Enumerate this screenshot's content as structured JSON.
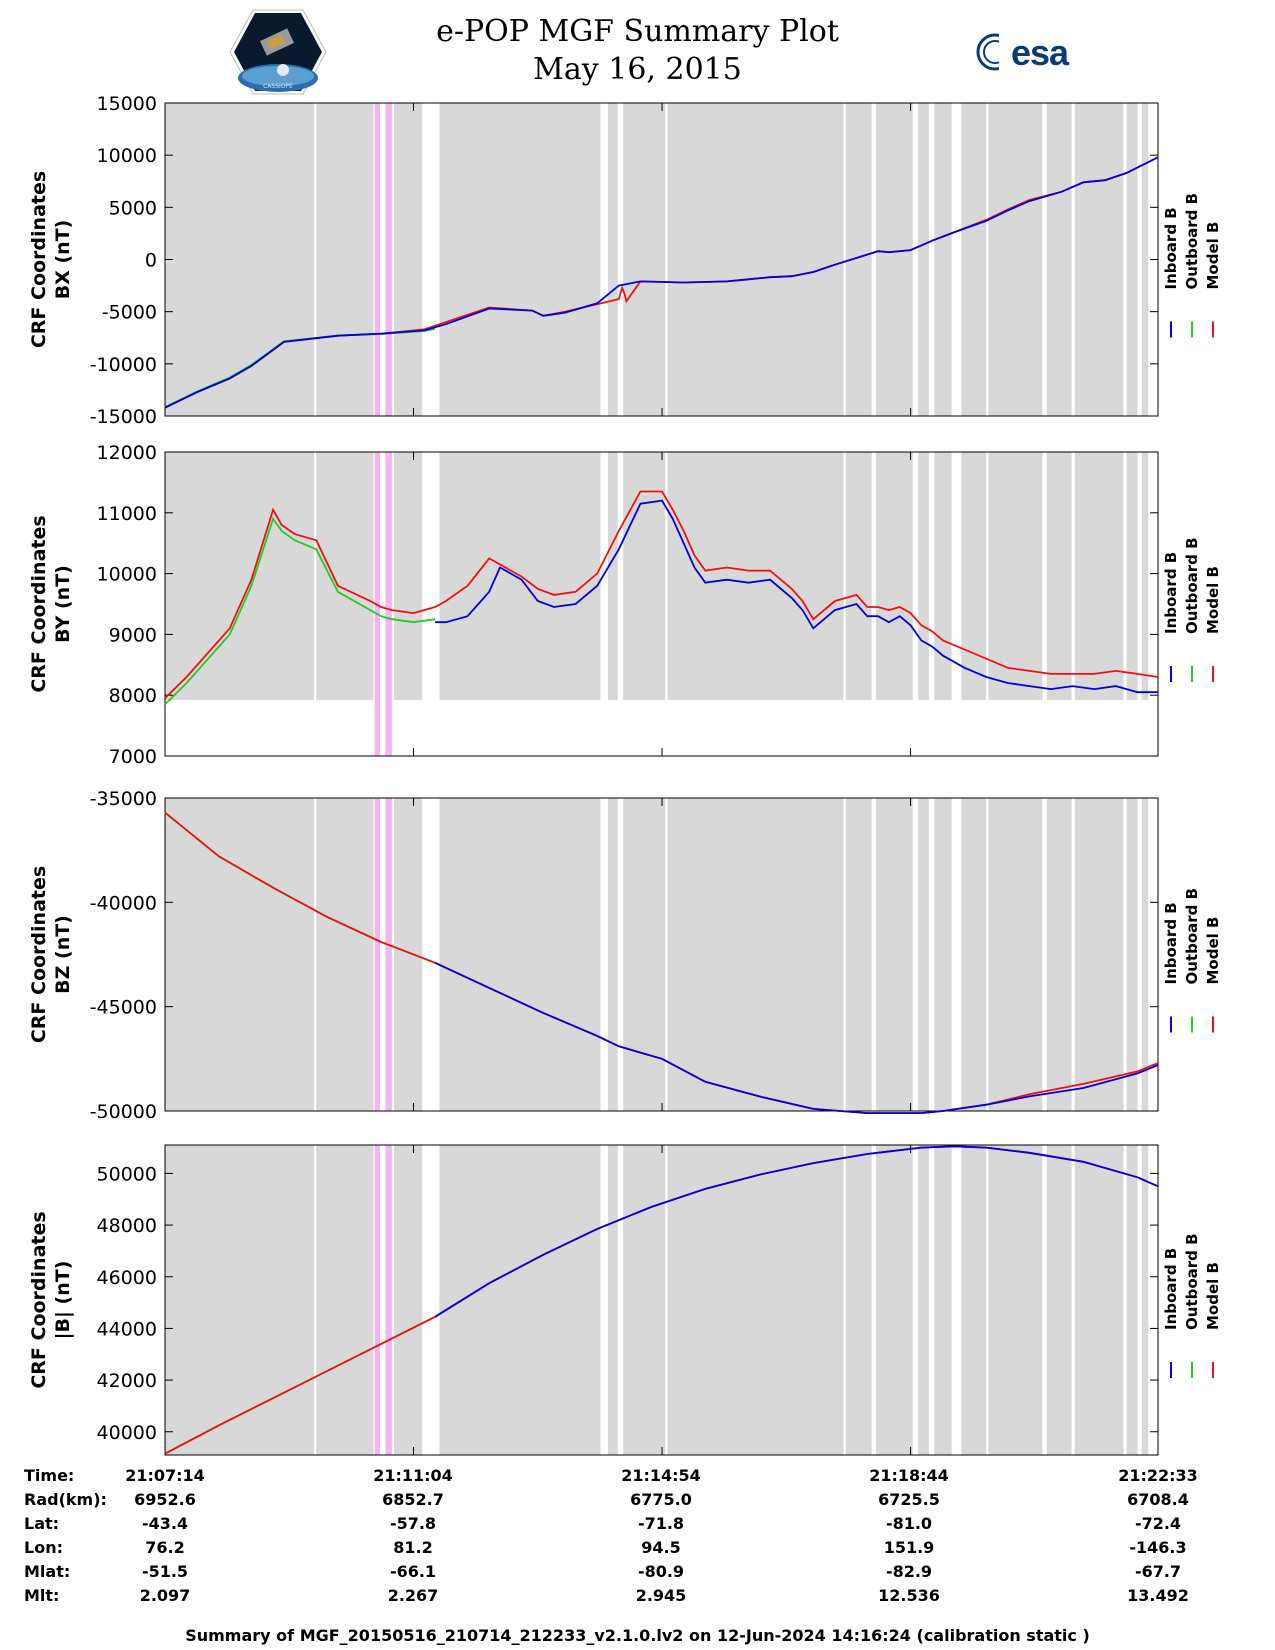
{
  "header": {
    "title_line1": "e-POP MGF Summary Plot",
    "title_line2": "May 16, 2015",
    "logo_left": "cassiope-satellite-logo",
    "logo_right_text": "esa",
    "logo_left_caption": "CASSIOPE"
  },
  "colors": {
    "inboard": "#0000dd",
    "outboard": "#22cc22",
    "model": "#ee1111",
    "background_band": "#d8d8d8",
    "pink_band": "#f3b6f0"
  },
  "legend": [
    "Inboard B",
    "Outboard B",
    "Model B"
  ],
  "time_axis": {
    "start_seconds": 0,
    "end_seconds": 919,
    "tick_seconds": [
      230,
      460,
      690
    ]
  },
  "chart_data": [
    {
      "type": "line",
      "ylabel_line1": "CRF Coordinates",
      "ylabel_line2": "BX (nT)",
      "ylim": [
        -15000,
        15000
      ],
      "yticks": [
        15000,
        10000,
        5000,
        0,
        -5000,
        -10000,
        -15000
      ],
      "ytick_labels": [
        "15000",
        "10000",
        "5000",
        "0",
        "-5000",
        "-10000",
        "-15000"
      ],
      "band_ylim": [
        -15000,
        15000
      ],
      "series": [
        {
          "name": "Inboard B",
          "x": [
            0,
            30,
            60,
            80,
            110,
            160,
            200,
            240,
            260,
            300,
            340,
            350,
            370,
            400,
            420,
            440,
            480,
            520,
            540,
            560,
            580,
            600,
            620,
            660,
            670,
            690,
            710,
            730,
            760,
            780,
            800,
            830,
            850,
            870,
            890,
            919
          ],
          "y": [
            -14200,
            -12700,
            -11400,
            -10200,
            -7900,
            -7300,
            -7100,
            -6800,
            -6200,
            -4700,
            -4900,
            -5400,
            -5100,
            -4200,
            -2500,
            -2100,
            -2200,
            -2100,
            -1900,
            -1700,
            -1600,
            -1200,
            -500,
            800,
            700,
            900,
            1800,
            2600,
            3700,
            4700,
            5600,
            6500,
            7400,
            7600,
            8300,
            9800
          ]
        },
        {
          "name": "Outboard B",
          "x": [
            0,
            30,
            60,
            80,
            110,
            160,
            200,
            240,
            250
          ],
          "y": [
            -14150,
            -12650,
            -11300,
            -10100,
            -7850,
            -7280,
            -7150,
            -6850,
            -6650
          ]
        },
        {
          "name": "Model B",
          "x": [
            0,
            30,
            60,
            80,
            110,
            160,
            200,
            240,
            260,
            300,
            340,
            350,
            370,
            420,
            423,
            425,
            427,
            440,
            480,
            520,
            540,
            560,
            580,
            600,
            620,
            660,
            670,
            690,
            710,
            730,
            760,
            780,
            800,
            830,
            850,
            870,
            890,
            919
          ],
          "y": [
            -14200,
            -12700,
            -11400,
            -10200,
            -7900,
            -7300,
            -7100,
            -6700,
            -6000,
            -4600,
            -4900,
            -5400,
            -5000,
            -3800,
            -2700,
            -3200,
            -4000,
            -2100,
            -2200,
            -2100,
            -1900,
            -1700,
            -1600,
            -1200,
            -500,
            800,
            700,
            900,
            1800,
            2600,
            3800,
            4800,
            5700,
            6500,
            7400,
            7600,
            8300,
            9800
          ]
        }
      ]
    },
    {
      "type": "line",
      "ylabel_line1": "CRF Coordinates",
      "ylabel_line2": "BY (nT)",
      "ylim": [
        7000,
        12000
      ],
      "yticks": [
        12000,
        11000,
        10000,
        9000,
        8000,
        7000
      ],
      "ytick_labels": [
        "12000",
        "11000",
        "10000",
        "9000",
        "8000",
        "7000"
      ],
      "band_ylim": [
        7920,
        12000
      ],
      "series": [
        {
          "name": "Inboard B",
          "x": [
            250,
            260,
            280,
            300,
            310,
            330,
            345,
            360,
            380,
            400,
            420,
            440,
            460,
            470,
            480,
            490,
            500,
            520,
            540,
            560,
            580,
            590,
            600,
            620,
            640,
            650,
            660,
            670,
            680,
            690,
            700,
            710,
            720,
            740,
            760,
            780,
            800,
            820,
            840,
            860,
            880,
            900,
            919
          ],
          "y": [
            9200,
            9200,
            9300,
            9700,
            10100,
            9900,
            9550,
            9450,
            9500,
            9800,
            10400,
            11150,
            11200,
            10900,
            10500,
            10100,
            9850,
            9900,
            9850,
            9900,
            9600,
            9400,
            9100,
            9400,
            9500,
            9300,
            9300,
            9200,
            9300,
            9150,
            8900,
            8800,
            8650,
            8450,
            8300,
            8200,
            8150,
            8100,
            8150,
            8100,
            8150,
            8050,
            8050
          ]
        },
        {
          "name": "Outboard B",
          "x": [
            0,
            20,
            40,
            60,
            80,
            100,
            108,
            120,
            140,
            160,
            190,
            200,
            210,
            230,
            250
          ],
          "y": [
            7850,
            8200,
            8600,
            9000,
            9800,
            10900,
            10700,
            10550,
            10400,
            9700,
            9400,
            9300,
            9250,
            9200,
            9250
          ]
        },
        {
          "name": "Model B",
          "x": [
            0,
            20,
            40,
            60,
            80,
            100,
            108,
            120,
            140,
            160,
            190,
            200,
            210,
            230,
            250,
            260,
            280,
            300,
            310,
            330,
            345,
            360,
            380,
            400,
            420,
            440,
            460,
            470,
            480,
            490,
            500,
            520,
            540,
            560,
            580,
            590,
            600,
            620,
            640,
            650,
            660,
            670,
            680,
            690,
            700,
            710,
            720,
            740,
            760,
            780,
            800,
            820,
            840,
            860,
            880,
            900,
            919
          ],
          "y": [
            7950,
            8300,
            8700,
            9100,
            9900,
            11050,
            10800,
            10650,
            10550,
            9800,
            9550,
            9450,
            9400,
            9350,
            9450,
            9550,
            9800,
            10250,
            10150,
            9950,
            9750,
            9650,
            9700,
            10000,
            10700,
            11350,
            11350,
            11050,
            10700,
            10300,
            10050,
            10100,
            10050,
            10050,
            9750,
            9550,
            9250,
            9550,
            9650,
            9450,
            9450,
            9400,
            9450,
            9350,
            9150,
            9050,
            8900,
            8750,
            8600,
            8450,
            8400,
            8350,
            8350,
            8350,
            8400,
            8350,
            8300
          ]
        }
      ]
    },
    {
      "type": "line",
      "ylabel_line1": "CRF Coordinates",
      "ylabel_line2": "BZ (nT)",
      "ylim": [
        -50000,
        -35000
      ],
      "yticks": [
        -35000,
        -40000,
        -45000,
        -50000
      ],
      "ytick_labels": [
        "-35000",
        "-40000",
        "-45000",
        "-50000"
      ],
      "band_ylim": [
        -50000,
        -35000
      ],
      "series": [
        {
          "name": "Inboard B",
          "x": [
            250,
            300,
            350,
            400,
            420,
            440,
            460,
            500,
            550,
            600,
            650,
            700,
            720,
            760,
            800,
            850,
            900,
            919
          ],
          "y": [
            -42900,
            -44100,
            -45300,
            -46400,
            -46900,
            -47200,
            -47500,
            -48600,
            -49300,
            -49900,
            -50100,
            -50100,
            -50000,
            -49700,
            -49300,
            -48900,
            -48200,
            -47800
          ]
        },
        {
          "name": "Outboard B",
          "x": [
            0,
            50,
            100,
            150,
            200,
            250
          ],
          "y": [
            -35700,
            -37800,
            -39300,
            -40700,
            -41900,
            -42900
          ]
        },
        {
          "name": "Model B",
          "x": [
            0,
            50,
            100,
            150,
            200,
            250,
            300,
            350,
            400,
            420,
            440,
            460,
            500,
            550,
            600,
            650,
            700,
            720,
            760,
            800,
            850,
            900,
            919
          ],
          "y": [
            -35700,
            -37800,
            -39300,
            -40700,
            -41900,
            -42900,
            -44100,
            -45300,
            -46400,
            -46900,
            -47200,
            -47500,
            -48600,
            -49300,
            -49900,
            -50100,
            -50100,
            -50000,
            -49700,
            -49200,
            -48700,
            -48100,
            -47700
          ]
        }
      ]
    },
    {
      "type": "line",
      "ylabel_line1": "CRF Coordinates",
      "ylabel_line2": "|B| (nT)",
      "ylim": [
        39100,
        51100
      ],
      "yticks": [
        50000,
        48000,
        46000,
        44000,
        42000,
        40000
      ],
      "ytick_labels": [
        "50000",
        "48000",
        "46000",
        "44000",
        "42000",
        "40000"
      ],
      "band_ylim": [
        39100,
        51100
      ],
      "series": [
        {
          "name": "Inboard B",
          "x": [
            250,
            300,
            350,
            400,
            450,
            500,
            550,
            600,
            650,
            700,
            730,
            760,
            800,
            850,
            900,
            919
          ],
          "y": [
            44450,
            45750,
            46850,
            47850,
            48700,
            49400,
            49950,
            50400,
            50750,
            51000,
            51050,
            51000,
            50800,
            50450,
            49850,
            49500
          ]
        },
        {
          "name": "Outboard B",
          "x": [
            0,
            50,
            100,
            150,
            200,
            250
          ],
          "y": [
            39150,
            40250,
            41300,
            42350,
            43400,
            44450
          ]
        },
        {
          "name": "Model B",
          "x": [
            0,
            50,
            100,
            150,
            200,
            250,
            300,
            350,
            400,
            450,
            500,
            550,
            600,
            650,
            700,
            730,
            760,
            800,
            850,
            900,
            919
          ],
          "y": [
            39150,
            40250,
            41300,
            42350,
            43400,
            44450,
            45750,
            46850,
            47850,
            48700,
            49400,
            49950,
            50400,
            50750,
            51000,
            51050,
            51000,
            50800,
            50450,
            49850,
            49500
          ]
        }
      ]
    }
  ],
  "gray_bands": [
    [
      0,
      138
    ],
    [
      140,
      193
    ],
    [
      212,
      238
    ],
    [
      254,
      403
    ],
    [
      410,
      419
    ],
    [
      424,
      463
    ],
    [
      465,
      628
    ],
    [
      630,
      654
    ],
    [
      658,
      692
    ],
    [
      697,
      707
    ],
    [
      712,
      728
    ],
    [
      737,
      760
    ],
    [
      762,
      812
    ],
    [
      816,
      839
    ],
    [
      842,
      887
    ],
    [
      890,
      900
    ],
    [
      904,
      910
    ]
  ],
  "pink_bands": [
    [
      194,
      199
    ],
    [
      204,
      210
    ]
  ],
  "ephemeris": {
    "labels": [
      "Time:",
      "Rad(km):",
      "Lat:",
      "Lon:",
      "Mlat:",
      "Mlt:"
    ],
    "columns": [
      [
        "21:07:14",
        "6952.6",
        "-43.4",
        "76.2",
        "-51.5",
        "2.097"
      ],
      [
        "21:11:04",
        "6852.7",
        "-57.8",
        "81.2",
        "-66.1",
        "2.267"
      ],
      [
        "21:14:54",
        "6775.0",
        "-71.8",
        "94.5",
        "-80.9",
        "2.945"
      ],
      [
        "21:18:44",
        "6725.5",
        "-81.0",
        "151.9",
        "-82.9",
        "12.536"
      ],
      [
        "21:22:33",
        "6708.4",
        "-72.4",
        "-146.3",
        "-67.7",
        "13.492"
      ]
    ]
  },
  "footer": "Summary of MGF_20150516_210714_212233_v2.1.0.lv2 on 12-Jun-2024 14:16:24 (calibration static )"
}
